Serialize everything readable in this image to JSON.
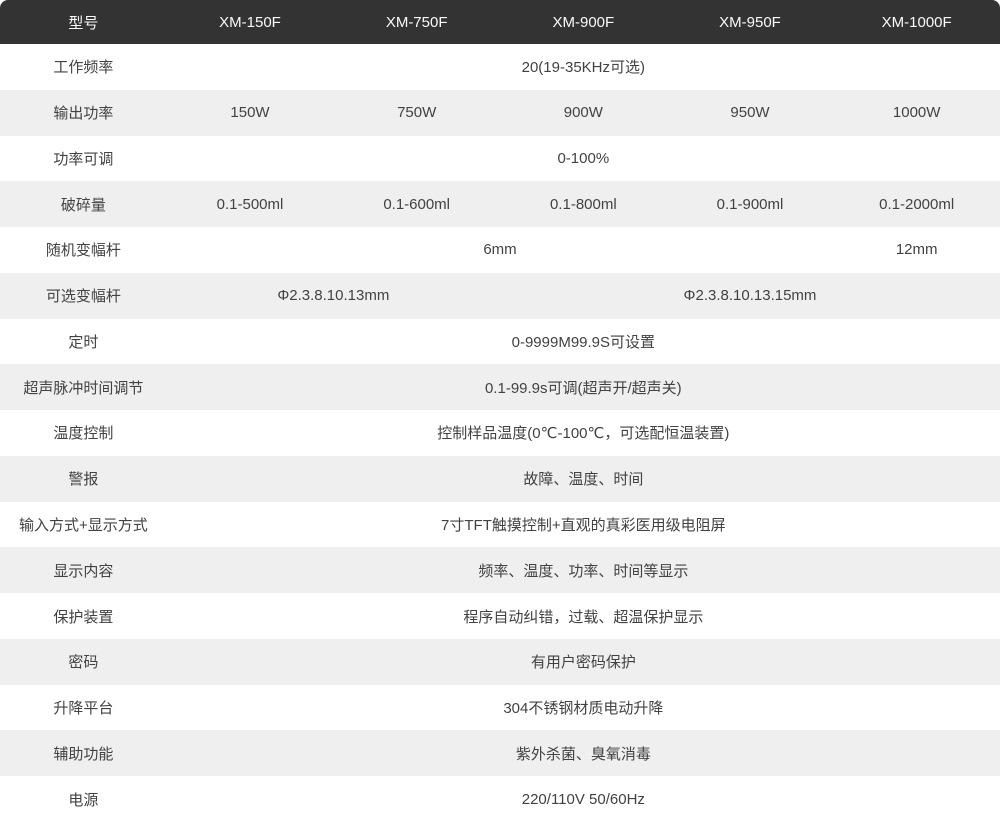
{
  "colors": {
    "header_bg": "#333333",
    "header_text": "#fafafa",
    "row_bg": "#ffffff",
    "row_alt_bg": "#efefef",
    "body_text": "#424242"
  },
  "table": {
    "header": [
      "型号",
      "XM-150F",
      "XM-750F",
      "XM-900F",
      "XM-950F",
      "XM-1000F"
    ],
    "rows": [
      {
        "label": "工作频率",
        "cells": [
          {
            "text": "20(19-35KHz可选)",
            "span": 5
          }
        ]
      },
      {
        "label": "输出功率",
        "cells": [
          {
            "text": "150W",
            "span": 1
          },
          {
            "text": "750W",
            "span": 1
          },
          {
            "text": "900W",
            "span": 1
          },
          {
            "text": "950W",
            "span": 1
          },
          {
            "text": "1000W",
            "span": 1
          }
        ]
      },
      {
        "label": "功率可调",
        "cells": [
          {
            "text": "0-100%",
            "span": 5
          }
        ]
      },
      {
        "label": "破碎量",
        "cells": [
          {
            "text": "0.1-500ml",
            "span": 1
          },
          {
            "text": "0.1-600ml",
            "span": 1
          },
          {
            "text": "0.1-800ml",
            "span": 1
          },
          {
            "text": "0.1-900ml",
            "span": 1
          },
          {
            "text": "0.1-2000ml",
            "span": 1
          }
        ]
      },
      {
        "label": "随机变幅杆",
        "cells": [
          {
            "text": "6mm",
            "span": 4
          },
          {
            "text": "12mm",
            "span": 1
          }
        ]
      },
      {
        "label": "可选变幅杆",
        "cells": [
          {
            "text": "Φ2.3.8.10.13mm",
            "span": 2
          },
          {
            "text": "Φ2.3.8.10.13.15mm",
            "span": 3
          }
        ]
      },
      {
        "label": "定时",
        "cells": [
          {
            "text": "0-9999M99.9S可设置",
            "span": 5
          }
        ]
      },
      {
        "label": "超声脉冲时间调节",
        "cells": [
          {
            "text": "0.1-99.9s可调(超声开/超声关)",
            "span": 5
          }
        ]
      },
      {
        "label": "温度控制",
        "cells": [
          {
            "text": "控制样品温度(0℃-100℃，可选配恒温装置)",
            "span": 5
          }
        ]
      },
      {
        "label": "警报",
        "cells": [
          {
            "text": "故障、温度、时间",
            "span": 5
          }
        ]
      },
      {
        "label": "输入方式+显示方式",
        "cells": [
          {
            "text": "7寸TFT触摸控制+直观的真彩医用级电阻屏",
            "span": 5
          }
        ]
      },
      {
        "label": "显示内容",
        "cells": [
          {
            "text": "频率、温度、功率、时间等显示",
            "span": 5
          }
        ]
      },
      {
        "label": "保护装置",
        "cells": [
          {
            "text": "程序自动纠错，过载、超温保护显示",
            "span": 5
          }
        ]
      },
      {
        "label": "密码",
        "cells": [
          {
            "text": "有用户密码保护",
            "span": 5
          }
        ]
      },
      {
        "label": "升降平台",
        "cells": [
          {
            "text": "304不锈钢材质电动升降",
            "span": 5
          }
        ]
      },
      {
        "label": "辅助功能",
        "cells": [
          {
            "text": "紫外杀菌、臭氧消毒",
            "span": 5
          }
        ]
      },
      {
        "label": "电源",
        "cells": [
          {
            "text": "220/110V 50/60Hz",
            "span": 5
          }
        ]
      }
    ]
  }
}
